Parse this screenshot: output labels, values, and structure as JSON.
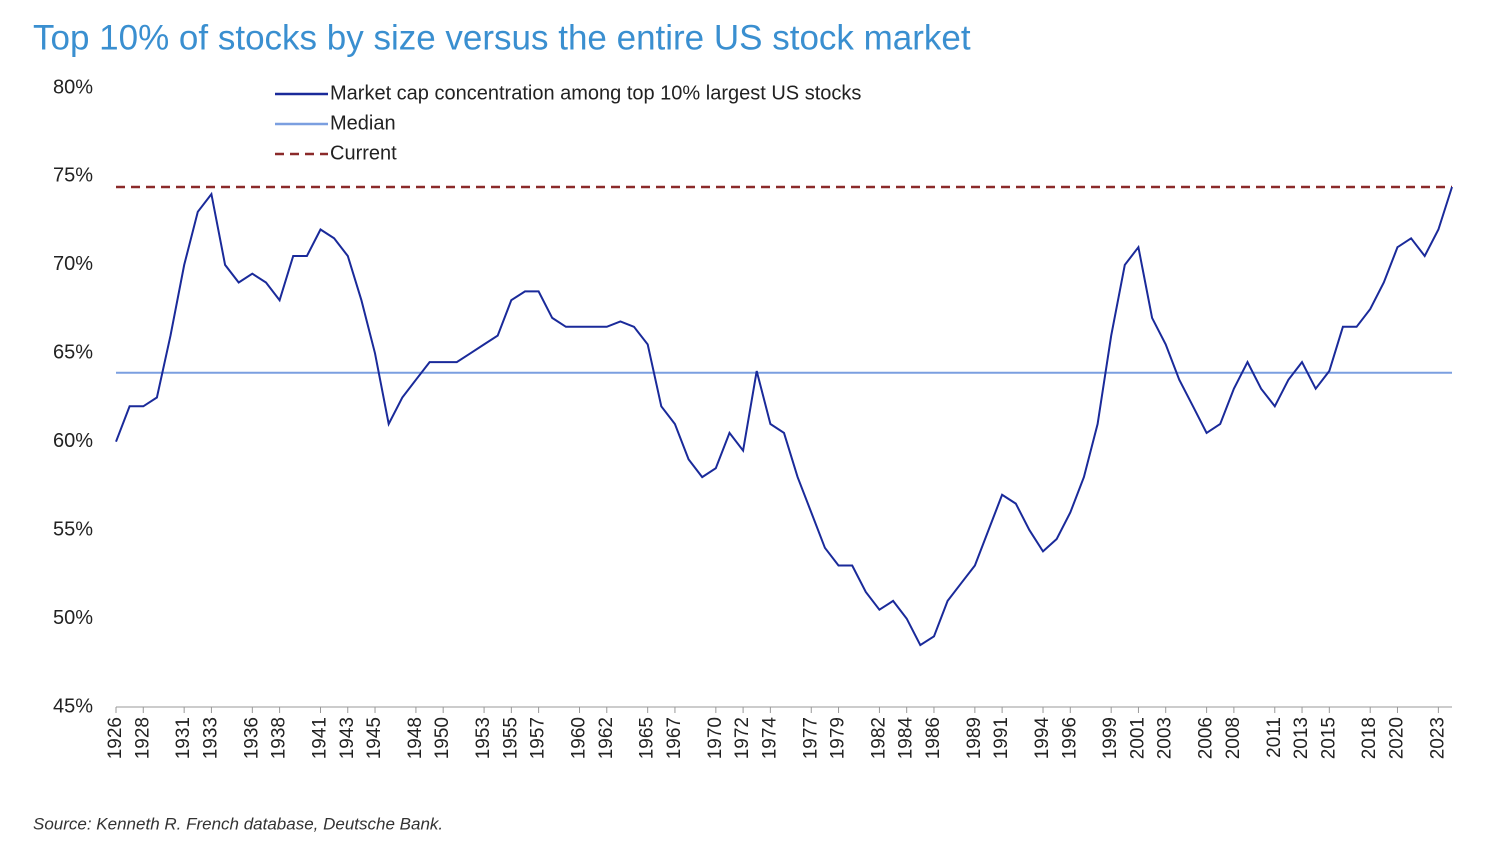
{
  "chart_data": {
    "type": "line",
    "title": "Top 10% of stocks by size versus the entire US stock market",
    "source": "Source: Kenneth R. French database, Deutsche Bank.",
    "x": [
      1926,
      1927,
      1928,
      1929,
      1930,
      1931,
      1932,
      1933,
      1934,
      1935,
      1936,
      1937,
      1938,
      1939,
      1940,
      1941,
      1942,
      1943,
      1944,
      1945,
      1946,
      1947,
      1948,
      1949,
      1950,
      1951,
      1952,
      1953,
      1954,
      1955,
      1956,
      1957,
      1958,
      1959,
      1960,
      1961,
      1962,
      1963,
      1964,
      1965,
      1966,
      1967,
      1968,
      1969,
      1970,
      1971,
      1972,
      1973,
      1974,
      1975,
      1976,
      1977,
      1978,
      1979,
      1980,
      1981,
      1982,
      1983,
      1984,
      1985,
      1986,
      1987,
      1988,
      1989,
      1990,
      1991,
      1992,
      1993,
      1994,
      1995,
      1996,
      1997,
      1998,
      1999,
      2000,
      2001,
      2002,
      2003,
      2004,
      2005,
      2006,
      2007,
      2008,
      2009,
      2010,
      2011,
      2012,
      2013,
      2014,
      2015,
      2016,
      2017,
      2018,
      2019,
      2020,
      2021,
      2022,
      2023,
      2024
    ],
    "series": [
      {
        "name": "Market cap concentration among top 10% largest US stocks",
        "color": "#1a2a9a",
        "values": [
          60,
          62,
          62,
          62.5,
          66,
          70,
          73,
          74,
          70,
          69,
          69.5,
          69,
          68,
          70.5,
          70.5,
          72,
          71.5,
          70.5,
          68,
          65,
          61,
          62.5,
          63.5,
          64.5,
          64.5,
          64.5,
          65,
          65.5,
          66,
          68,
          68.5,
          68.5,
          67,
          66.5,
          66.5,
          66.5,
          66.5,
          66.8,
          66.5,
          65.5,
          62,
          61,
          59,
          58,
          58.5,
          60.5,
          59.5,
          64,
          61,
          60.5,
          58,
          56,
          54,
          53,
          53,
          51.5,
          50.5,
          51,
          50,
          48.5,
          49,
          51,
          52,
          53,
          55,
          57,
          56.5,
          55,
          53.8,
          54.5,
          56,
          58,
          61,
          66,
          70,
          71,
          67,
          65.5,
          63.5,
          62,
          60.5,
          61,
          63,
          64.5,
          63,
          62,
          63.5,
          64.5,
          63,
          64,
          66.5,
          66.5,
          67.5,
          69,
          71,
          71.5,
          70.5,
          72,
          74.4
        ]
      }
    ],
    "hlines": [
      {
        "name": "Median",
        "value": 63.9,
        "color": "#7b9fe0",
        "dashed": false
      },
      {
        "name": "Current",
        "value": 74.4,
        "color": "#8b2a2a",
        "dashed": true
      }
    ],
    "xlim": [
      1926,
      2024
    ],
    "xticks": [
      1926,
      1928,
      1931,
      1933,
      1936,
      1938,
      1941,
      1943,
      1945,
      1948,
      1950,
      1953,
      1955,
      1957,
      1960,
      1962,
      1965,
      1967,
      1970,
      1972,
      1974,
      1977,
      1979,
      1982,
      1984,
      1986,
      1989,
      1991,
      1994,
      1996,
      1999,
      2001,
      2003,
      2006,
      2008,
      2011,
      2013,
      2015,
      2018,
      2020,
      2023
    ],
    "ylim": [
      45,
      80
    ],
    "yticks": [
      {
        "value": 45,
        "label": "45%"
      },
      {
        "value": 50,
        "label": "50%"
      },
      {
        "value": 55,
        "label": "55%"
      },
      {
        "value": 60,
        "label": "60%"
      },
      {
        "value": 65,
        "label": "65%"
      },
      {
        "value": 70,
        "label": "70%"
      },
      {
        "value": 75,
        "label": "75%"
      },
      {
        "value": 80,
        "label": "80%"
      }
    ],
    "grid": false,
    "legend": "top-left"
  }
}
